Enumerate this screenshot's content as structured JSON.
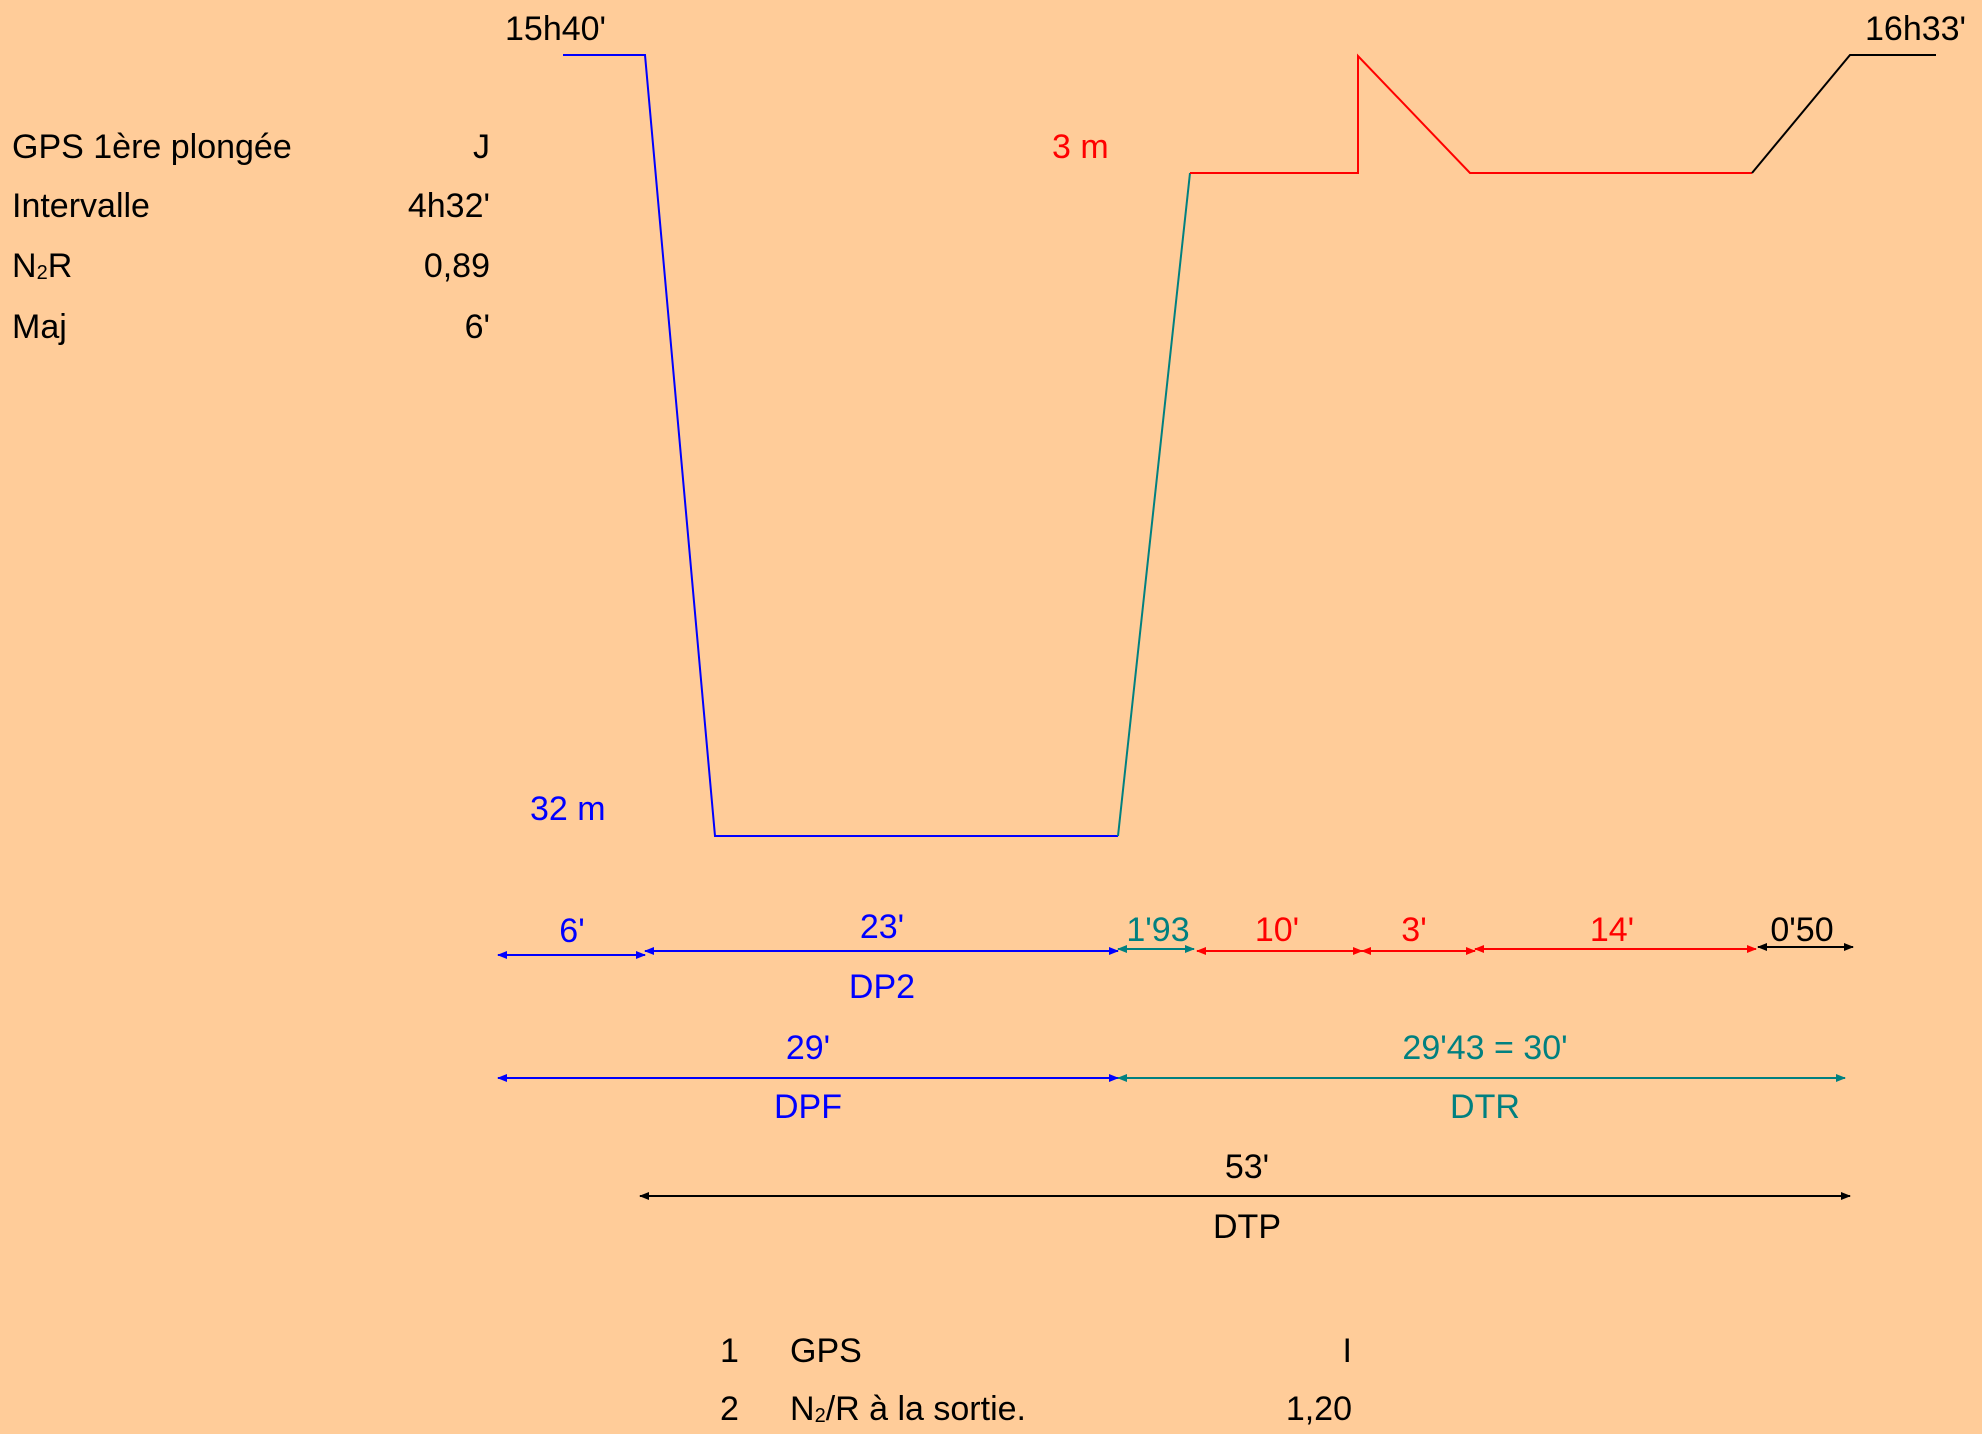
{
  "info": {
    "rows": [
      {
        "label": "GPS 1ère plongée",
        "value": "J"
      },
      {
        "label": "Intervalle",
        "value": "4h32'"
      },
      {
        "label_main": "N",
        "label_sub": "2",
        "label_tail": "R",
        "value": "0,89"
      },
      {
        "label": "Maj",
        "value": "6'"
      }
    ]
  },
  "profile": {
    "start_time": "15h40'",
    "end_time": "16h33'",
    "bottom_depth": "32 m",
    "stop_depth": "3 m"
  },
  "durations": {
    "descent": "6'",
    "bottom": "23'",
    "ascent": "1'93",
    "stop": "10'",
    "reimmersion": "3'",
    "stop2": "14'",
    "surface": "0'50",
    "dp2_label": "DP2",
    "dpf_value": "29'",
    "dpf_label": "DPF",
    "dtr_value": "29'43 = 30'",
    "dtr_label": "DTR",
    "dtp_value": "53'",
    "dtp_label": "DTP"
  },
  "results": [
    {
      "num": "1",
      "label": "GPS",
      "value": "I"
    },
    {
      "num": "2",
      "label_main": "N",
      "label_sub": "2",
      "label_tail": "/R à la sortie.",
      "value": "1,20"
    }
  ],
  "colors": {
    "blue": "#0000ff",
    "teal": "#008080",
    "red": "#ff0000",
    "black": "#000000",
    "background": "#ffcc99"
  }
}
